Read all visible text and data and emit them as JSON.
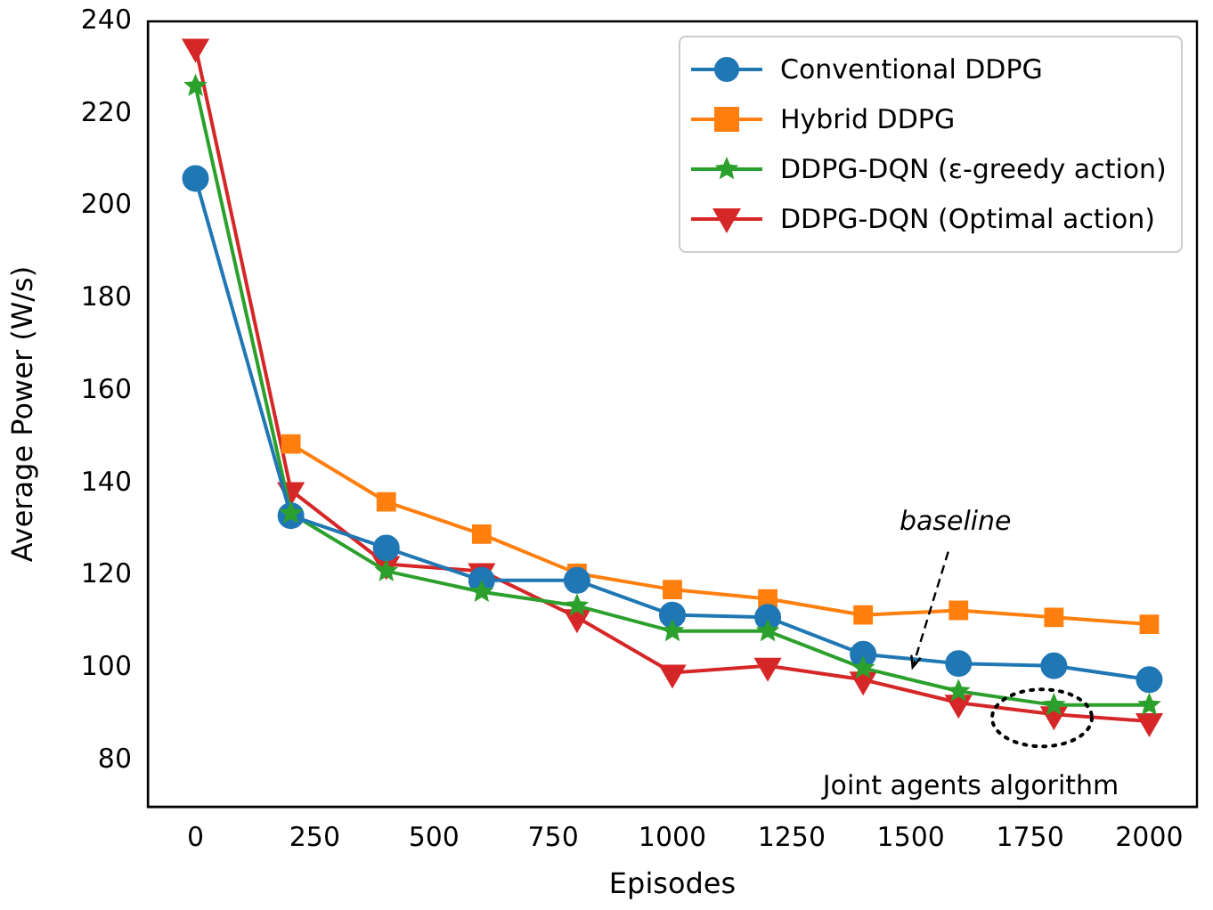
{
  "chart_data": {
    "type": "line",
    "xlabel": "Episodes",
    "ylabel": "Average Power (W/s)",
    "x": [
      0,
      200,
      400,
      600,
      800,
      1000,
      1200,
      1400,
      1600,
      1800,
      2000
    ],
    "series": [
      {
        "name": "Conventional DDPG",
        "color": "#1f77b4",
        "marker": "circle",
        "values": [
          206,
          133,
          126,
          119,
          119,
          111.5,
          111,
          103,
          101,
          100.5,
          97.5
        ]
      },
      {
        "name": "Hybrid DDPG",
        "color": "#ff7f0e",
        "marker": "square",
        "values": [
          null,
          148.5,
          136,
          129,
          120.5,
          117,
          115,
          111.5,
          112.5,
          111,
          109.5
        ]
      },
      {
        "name": "DDPG-DQN (ε-greedy action)",
        "color": "#2ca02c",
        "marker": "star",
        "values": [
          226,
          133.5,
          121,
          116.5,
          113.5,
          108,
          108,
          100,
          95,
          92,
          92
        ]
      },
      {
        "name": "DDPG-DQN (Optimal action)",
        "color": "#d62728",
        "marker": "triangle",
        "values": [
          234.5,
          138.5,
          122.5,
          121,
          111,
          99,
          100.5,
          97.5,
          92.5,
          90,
          88.5
        ]
      }
    ],
    "xlim": [
      -100,
      2100
    ],
    "xticks": [
      0,
      250,
      500,
      750,
      1000,
      1250,
      1500,
      1750,
      2000
    ],
    "ylim": [
      70,
      240
    ],
    "yticks": [
      80,
      100,
      120,
      140,
      160,
      180,
      200,
      220,
      240
    ],
    "annotations": [
      {
        "text": "baseline",
        "x": 1500,
        "y": 99
      },
      {
        "text": "Joint agents algorithm",
        "x": 1775,
        "y": 90
      }
    ],
    "legend": "top right",
    "grid": false,
    "line_style": "solid"
  }
}
